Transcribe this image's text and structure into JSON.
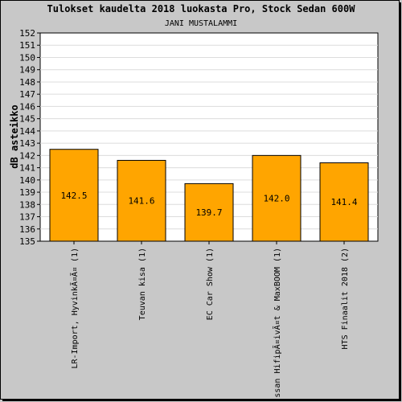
{
  "chart_data": {
    "type": "bar",
    "title": "Tulokset kaudelta 2018 luokasta Pro, Stock Sedan 600W",
    "subtitle": "JANI MUSTALAMMI",
    "ylabel": "dB asteikko",
    "xlabel": "",
    "ylim": [
      135,
      152
    ],
    "yticks": [
      135,
      136,
      137,
      138,
      139,
      140,
      141,
      142,
      143,
      144,
      145,
      146,
      147,
      148,
      149,
      150,
      151,
      152
    ],
    "grid": true,
    "categories": [
      "LR-Import, HyvinkÃ¤Ã¤ (1)",
      "Teuvan kisa (1)",
      "EC Car Show (1)",
      "ssan HifipÃ¤ivÃ¤t & MaxBOOM (1)",
      "HTS Finaalit 2018 (2)"
    ],
    "values": [
      142.5,
      141.6,
      139.7,
      142.0,
      141.4
    ],
    "value_labels": [
      "142.5",
      "141.6",
      "139.7",
      "142.0",
      "141.4"
    ],
    "colors": {
      "bar": "#ffa500",
      "background": "#c8c8c8",
      "plot": "#ffffff",
      "grid": "#dcdcdc",
      "text": "#000000"
    }
  }
}
